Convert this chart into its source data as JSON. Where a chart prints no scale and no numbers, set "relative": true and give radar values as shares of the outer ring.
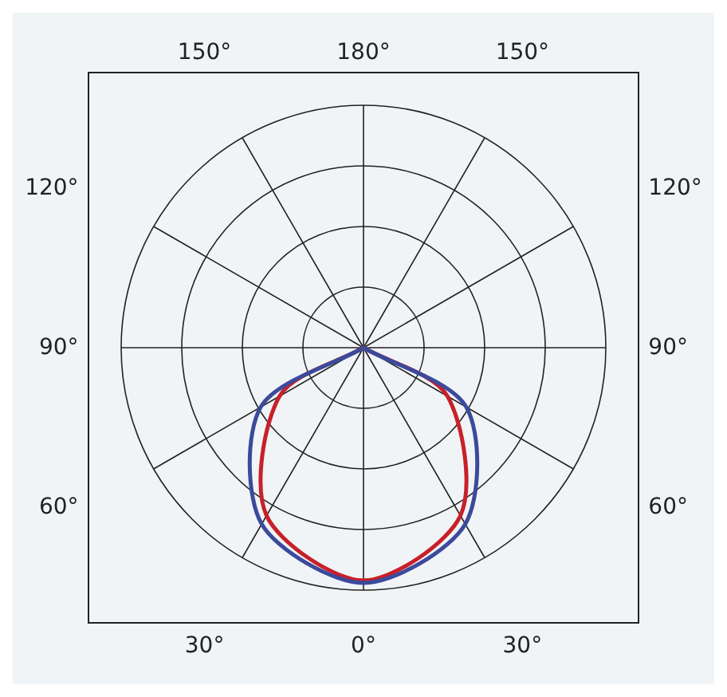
{
  "chart_data": {
    "type": "radar",
    "relative": true,
    "categories": [
      "180°",
      "150°",
      "120°",
      "90°",
      "60°",
      "30°",
      "0°",
      "30°",
      "60°",
      "90°",
      "120°",
      "150°"
    ],
    "marker": "none",
    "grid": true,
    "legend": false,
    "series": [
      {
        "color": "#3b4a9c",
        "values": [
          0,
          0,
          0,
          0,
          0.49,
          0.84,
          0.97,
          0.84,
          0.49,
          0,
          0,
          0
        ]
      },
      {
        "color": "#c8202a",
        "values": [
          0,
          0,
          0,
          0,
          0.4,
          0.8,
          0.96,
          0.8,
          0.4,
          0,
          0,
          0
        ]
      }
    ]
  }
}
